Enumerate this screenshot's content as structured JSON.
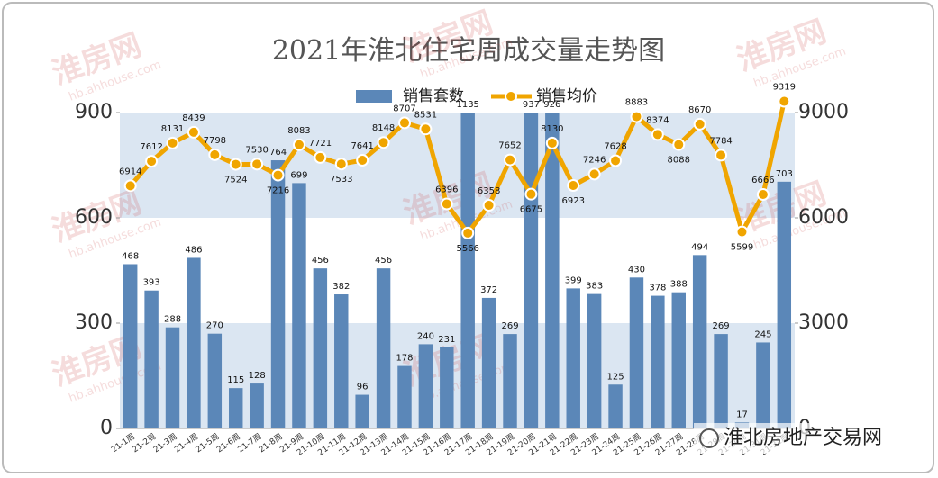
{
  "chart_data": {
    "type": "bar_line",
    "title": "2021年淮北住宅周成交量走势图",
    "categories": [
      "21-1周",
      "21-2周",
      "21-3周",
      "21-4周",
      "21-5周",
      "21-6周",
      "21-7周",
      "21-8周",
      "21-9周",
      "21-10周",
      "21-11周",
      "21-12周",
      "21-13周",
      "21-14周",
      "21-15周",
      "21-16周",
      "21-17周",
      "21-18周",
      "21-19周",
      "21-20周",
      "21-21周",
      "21-22周",
      "21-23周",
      "21-24周",
      "21-25周",
      "21-26周",
      "21-27周",
      "21-28周",
      "21-29周",
      "21-30周",
      "21-31周",
      "21-32周"
    ],
    "series": [
      {
        "name": "销售套数",
        "type": "bar",
        "color": "#5b87b8",
        "values": [
          468,
          393,
          288,
          486,
          270,
          115,
          128,
          764,
          699,
          456,
          382,
          96,
          456,
          178,
          240,
          231,
          1135,
          372,
          269,
          937,
          926,
          399,
          383,
          125,
          430,
          378,
          388,
          494,
          269,
          17,
          245,
          703
        ]
      },
      {
        "name": "销售均价",
        "type": "line",
        "axis": "y2",
        "color": "#f0a500",
        "values": [
          6914,
          7612,
          8131,
          8439,
          7798,
          7524,
          7530,
          7216,
          8083,
          7721,
          7533,
          7641,
          8148,
          8707,
          8531,
          6396,
          5566,
          6358,
          7652,
          6675,
          8130,
          6923,
          7246,
          7628,
          8883,
          8374,
          8088,
          8670,
          7784,
          5599,
          6666,
          9319
        ]
      }
    ],
    "ylim": [
      0,
      900
    ],
    "yticks": [
      0,
      300,
      600,
      900
    ],
    "y2lim": [
      0,
      9000
    ],
    "y2ticks": [
      0,
      3000,
      6000,
      9000
    ],
    "bands": [
      [
        0,
        300
      ],
      [
        600,
        900
      ]
    ],
    "band_color": "#dbe6f2",
    "legend": "top",
    "watermark": "淮北房地产交易网",
    "watermark_logo": "淮房网",
    "watermark_url": "hb.ahhouse.com"
  }
}
